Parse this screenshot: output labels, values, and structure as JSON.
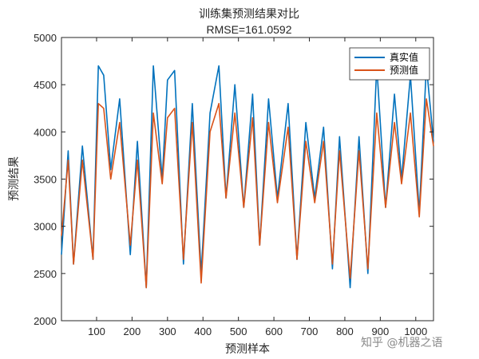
{
  "chart_data": {
    "type": "line",
    "title": "训练集预测结果对比",
    "subtitle": "RMSE=161.0592",
    "xlabel": "预测样本",
    "ylabel": "预测结果",
    "xlim": [
      1,
      1050
    ],
    "ylim": [
      2000,
      5000
    ],
    "xticks": [
      100,
      200,
      300,
      400,
      500,
      600,
      700,
      800,
      900,
      1000
    ],
    "yticks": [
      2000,
      2500,
      3000,
      3500,
      4000,
      4500,
      5000
    ],
    "grid": false,
    "legend_position": "top-right",
    "series": [
      {
        "name": "真实值",
        "color": "#0072BD",
        "x": [
          1,
          20,
          35,
          60,
          90,
          105,
          120,
          140,
          165,
          195,
          215,
          240,
          260,
          285,
          300,
          320,
          345,
          370,
          395,
          420,
          445,
          465,
          490,
          515,
          540,
          560,
          585,
          610,
          640,
          665,
          690,
          715,
          740,
          765,
          785,
          815,
          840,
          865,
          890,
          915,
          940,
          960,
          985,
          1010,
          1030,
          1050
        ],
        "values": [
          2700,
          3800,
          2600,
          3850,
          2650,
          4700,
          4600,
          3600,
          4350,
          2700,
          3900,
          2350,
          4700,
          3500,
          4550,
          4650,
          2600,
          4300,
          2500,
          4200,
          4700,
          3300,
          4500,
          3200,
          4400,
          2800,
          4350,
          3300,
          4300,
          2650,
          4100,
          3300,
          4050,
          2550,
          3950,
          2350,
          3950,
          2500,
          4700,
          3200,
          4400,
          3500,
          4600,
          3150,
          4700,
          3900
        ]
      },
      {
        "name": "预测值",
        "color": "#D95319",
        "x": [
          1,
          20,
          35,
          60,
          90,
          105,
          120,
          140,
          165,
          195,
          215,
          240,
          260,
          285,
          300,
          320,
          345,
          370,
          395,
          420,
          445,
          465,
          490,
          515,
          540,
          560,
          585,
          610,
          640,
          665,
          690,
          715,
          740,
          765,
          785,
          815,
          840,
          865,
          890,
          915,
          940,
          960,
          985,
          1010,
          1030,
          1050
        ],
        "values": [
          2900,
          3700,
          2600,
          3700,
          2650,
          4300,
          4250,
          3500,
          4100,
          2800,
          3700,
          2350,
          4200,
          3450,
          4150,
          4250,
          2650,
          4100,
          2400,
          4000,
          4300,
          3300,
          4200,
          3200,
          4150,
          2800,
          4100,
          3250,
          4050,
          2650,
          3900,
          3250,
          3900,
          2600,
          3800,
          2450,
          3800,
          2550,
          4200,
          3200,
          4100,
          3450,
          4200,
          3100,
          4350,
          3850
        ]
      }
    ]
  },
  "watermark": "知乎 @机器之语"
}
